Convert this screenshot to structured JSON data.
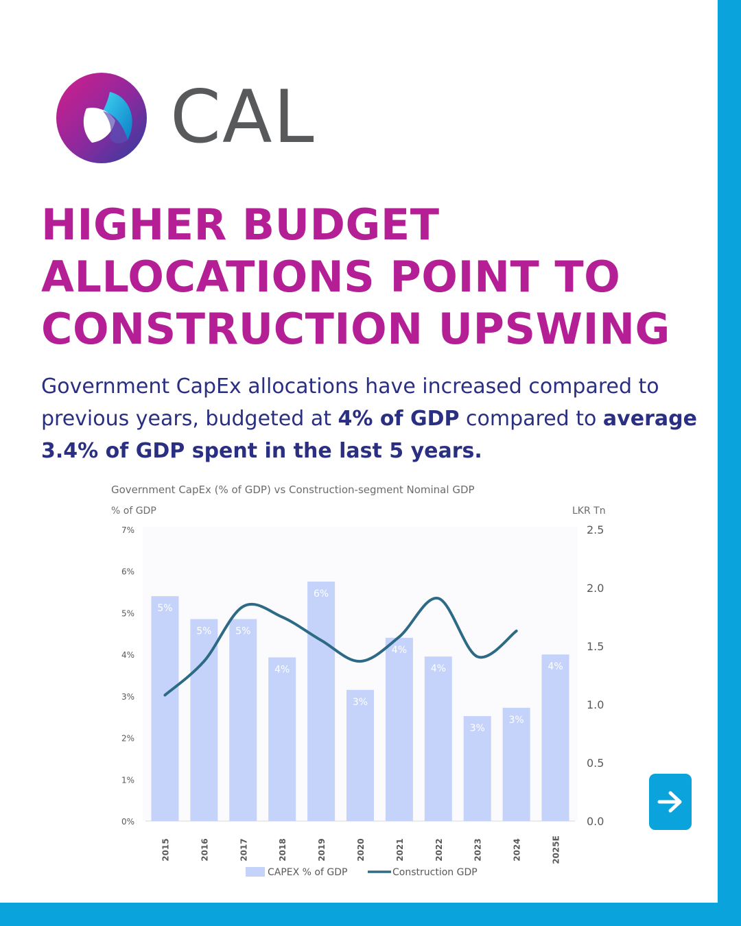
{
  "brand": {
    "name": "CAL"
  },
  "headline": [
    "HIGHER BUDGET",
    "ALLOCATIONS POINT TO",
    "CONSTRUCTION UPSWING"
  ],
  "body": {
    "p1": "Government CapEx allocations have increased compared to previous years, budgeted at ",
    "b1": "4% of GDP",
    "p2": " compared to ",
    "b2": "average 3.4% of GDP spent in the last 5 years."
  },
  "colors": {
    "accent": "#b51f96",
    "frame": "#0aa3dc",
    "text": "#2a2f82",
    "bar": "#c5d3fb",
    "line": "#2d6a86"
  },
  "nav": {
    "next_icon": "arrow-right-icon"
  },
  "chart_data": {
    "type": "bar",
    "title": "Government CapEx (% of GDP) vs Construction-segment Nominal GDP",
    "left_axis": {
      "unit": "% of GDP",
      "ylim": [
        0,
        7
      ],
      "ticks": [
        "0%",
        "1%",
        "2%",
        "3%",
        "4%",
        "5%",
        "6%",
        "7%"
      ]
    },
    "right_axis": {
      "unit": "LKR Tn",
      "ylim": [
        0,
        2.5
      ],
      "ticks": [
        "0.0",
        "0.5",
        "1.0",
        "1.5",
        "2.0",
        "2.5"
      ]
    },
    "categories": [
      "2015",
      "2016",
      "2017",
      "2018",
      "2019",
      "2020",
      "2021",
      "2022",
      "2023",
      "2024",
      "2025E"
    ],
    "series": [
      {
        "name": "CAPEX % of GDP",
        "kind": "bar",
        "axis": "left",
        "values": [
          5.4,
          4.85,
          4.85,
          3.93,
          5.75,
          3.15,
          4.4,
          3.95,
          2.52,
          2.72,
          4.0
        ],
        "labels": [
          "5%",
          "5%",
          "5%",
          "4%",
          "6%",
          "3%",
          "4%",
          "4%",
          "3%",
          "3%",
          "4%"
        ]
      },
      {
        "name": "Construction GDP",
        "kind": "line",
        "axis": "right",
        "values": [
          1.08,
          1.37,
          1.84,
          1.75,
          1.55,
          1.37,
          1.58,
          1.91,
          1.41,
          1.63,
          null
        ]
      }
    ],
    "grid": false,
    "legend": "bottom"
  }
}
